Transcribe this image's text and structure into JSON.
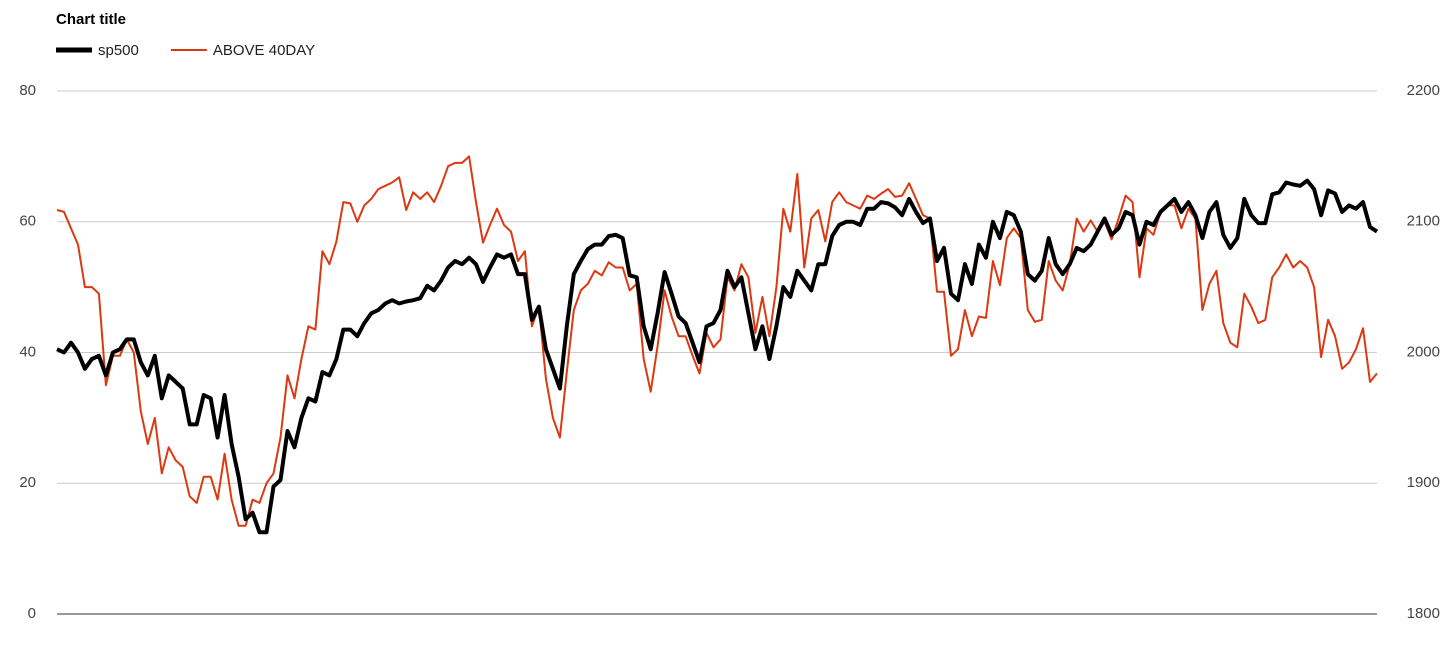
{
  "chart_data": {
    "type": "line",
    "title": "Chart title",
    "ylim": [
      0,
      80
    ],
    "yticks": [
      0,
      20,
      40,
      60,
      80
    ],
    "y2lim": [
      1800,
      2200
    ],
    "y2ticks": [
      1800,
      1900,
      2000,
      2100,
      2200
    ],
    "grid": true,
    "legend": "top-left",
    "series": [
      {
        "name": "sp500",
        "color": "#000000",
        "axis": "y2",
        "values": [
          2002.5,
          2000,
          2007.5,
          2000,
          1987.5,
          1995,
          1997.5,
          1982.5,
          2000,
          2002.5,
          2010,
          2010,
          1992.5,
          1982.5,
          1997.5,
          1965,
          1982.5,
          1977.5,
          1972.5,
          1945,
          1945,
          1967.5,
          1965,
          1935,
          1967.5,
          1930,
          1905,
          1872.5,
          1877.5,
          1862.5,
          1862.5,
          1897.5,
          1902.5,
          1940,
          1927.5,
          1950,
          1965,
          1962.5,
          1985,
          1982.5,
          1995,
          2017.5,
          2017.5,
          2012.5,
          2022.5,
          2030,
          2032.5,
          2037.5,
          2040,
          2037.5,
          2039,
          2040,
          2041.5,
          2051,
          2047.5,
          2055,
          2065,
          2070,
          2067.5,
          2072.5,
          2067.5,
          2054,
          2065,
          2075,
          2072.5,
          2075,
          2060,
          2060,
          2025,
          2035,
          2002.5,
          1987.5,
          1972.5,
          2020,
          2060,
          2070,
          2079,
          2082.5,
          2082.5,
          2089,
          2090,
          2087.5,
          2059,
          2057.5,
          2020,
          2002.5,
          2030,
          2061.5,
          2045,
          2027.5,
          2022.5,
          2007.5,
          1992.5,
          2020,
          2022.5,
          2032.5,
          2062.5,
          2050,
          2057.5,
          2030,
          2002.5,
          2020,
          1995,
          2020,
          2050,
          2042.5,
          2062.5,
          2055,
          2047.5,
          2067.5,
          2067.5,
          2089,
          2097.5,
          2100,
          2100,
          2097.5,
          2110,
          2110,
          2115,
          2114,
          2111,
          2105,
          2117.5,
          2107.5,
          2099,
          2102.5,
          2070,
          2080,
          2045,
          2040,
          2067.5,
          2052.5,
          2082.5,
          2072.5,
          2100,
          2087.5,
          2107.5,
          2105,
          2092.5,
          2060,
          2055,
          2062.5,
          2087.5,
          2067.5,
          2060,
          2067.5,
          2080,
          2077.5,
          2082.5,
          2092.5,
          2102.5,
          2090,
          2095,
          2107.5,
          2105,
          2082.5,
          2100,
          2097.5,
          2107.5,
          2112.5,
          2117.5,
          2107.5,
          2115,
          2105,
          2087.5,
          2107.5,
          2115,
          2090,
          2080,
          2087.5,
          2117.5,
          2105,
          2099,
          2099,
          2121,
          2122.5,
          2130,
          2128.5,
          2127.5,
          2131.5,
          2125,
          2105,
          2124,
          2121.5,
          2107.5,
          2112.5,
          2110,
          2115,
          2096,
          2092.5
        ]
      },
      {
        "name": "ABOVE 40DAY",
        "color": "#dc3912",
        "values": [
          61.8,
          61.5,
          59,
          56.5,
          50,
          50,
          49,
          35,
          39.5,
          39.5,
          42,
          40,
          31,
          26,
          30,
          21.5,
          25.5,
          23.5,
          22.5,
          18,
          17,
          21,
          21,
          17.5,
          24.5,
          17.5,
          13.5,
          13.5,
          17.5,
          17,
          20,
          21.5,
          27,
          36.5,
          33,
          39,
          44,
          43.5,
          55.5,
          53.5,
          57,
          63,
          62.8,
          60,
          62.5,
          63.5,
          65,
          65.5,
          66,
          66.8,
          61.8,
          64.5,
          63.5,
          64.5,
          63,
          65.5,
          68.5,
          69,
          69,
          70,
          63,
          56.8,
          59.5,
          62,
          59.5,
          58.5,
          54,
          55.5,
          44,
          47,
          36,
          30,
          27,
          37,
          46.5,
          49.5,
          50.5,
          52.5,
          51.8,
          53.8,
          53,
          53,
          49.5,
          50.5,
          39,
          34,
          41,
          49.5,
          45.5,
          42.5,
          42.5,
          39.5,
          36.8,
          43,
          40.8,
          42,
          51.5,
          49.5,
          53.5,
          51.5,
          43,
          48.5,
          42.5,
          50,
          62,
          58.5,
          67.3,
          53,
          60.5,
          61.8,
          57,
          63,
          64.5,
          63,
          62.5,
          62,
          64,
          63.5,
          64.3,
          65,
          63.8,
          64,
          65.9,
          63.5,
          61,
          60.5,
          49.3,
          49.3,
          39.5,
          40.5,
          46.5,
          42.5,
          45.5,
          45.3,
          54,
          50.3,
          57.5,
          59,
          57.5,
          46.5,
          44.7,
          45,
          54,
          51,
          49.5,
          53.5,
          60.5,
          58.5,
          60.2,
          58.5,
          60,
          57.3,
          60.5,
          64,
          63,
          51.5,
          59,
          58,
          61.5,
          62.5,
          62.5,
          59,
          62,
          60.5,
          46.5,
          50.5,
          52.5,
          44.5,
          41.5,
          40.8,
          49,
          47,
          44.5,
          45,
          51.5,
          53,
          55,
          53,
          54,
          53,
          50,
          39.3,
          45,
          42.5,
          37.5,
          38.5,
          40.5,
          43.7,
          35.5,
          36.8
        ]
      }
    ]
  }
}
